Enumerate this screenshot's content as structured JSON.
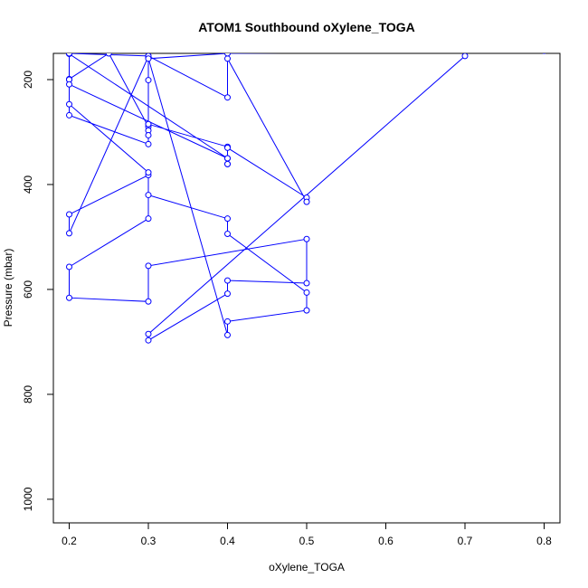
{
  "chart_data": {
    "type": "line",
    "title": "ATOM1 Southbound oXylene_TOGA",
    "xlabel": "oXylene_TOGA",
    "ylabel": "Pressure (mbar)",
    "xlim": [
      0.18,
      0.82
    ],
    "ylim": [
      1045,
      150
    ],
    "y_reversed": true,
    "grid": false,
    "legend": "none",
    "x_ticks": [
      0.2,
      0.3,
      0.4,
      0.5,
      0.6,
      0.7,
      0.8
    ],
    "x_tick_labels": [
      "0.2",
      "0.3",
      "0.4",
      "0.5",
      "0.6",
      "0.7",
      "0.8"
    ],
    "y_ticks": [
      200,
      400,
      600,
      800,
      1000
    ],
    "y_tick_labels": [
      "200",
      "400",
      "600",
      "800",
      "1000"
    ],
    "series_color": "#0000ff",
    "series": [
      {
        "x": [
          0.7,
          0.3,
          0.3,
          0.4,
          0.4,
          0.5,
          0.5,
          0.3,
          0.3,
          0.2,
          0.2,
          0.3,
          0.3,
          0.2,
          0.2,
          0.3,
          0.3,
          0.4,
          0.4,
          0.5,
          0.5,
          0.4,
          0.4,
          0.3,
          0.3,
          0.2,
          0.2,
          0.25,
          0.3,
          0.3,
          0.3,
          0.3,
          0.3,
          0.2,
          0.2,
          0.2,
          0.4,
          0.4,
          0.4,
          0.3,
          0.3,
          0.3,
          0.2,
          0.2,
          0.2,
          0.4,
          0.4,
          0.4,
          0.5,
          0.5,
          0.4,
          0.4,
          0.3,
          0.3,
          0.4,
          0.8
        ],
        "y": [
          155,
          685,
          697,
          608,
          583,
          588,
          504,
          555,
          623,
          616,
          557,
          465,
          382,
          457,
          493,
          156,
          159,
          687,
          661,
          640,
          606,
          494,
          465,
          420,
          377,
          247,
          199,
          150,
          290,
          297,
          306,
          285,
          323,
          268,
          200,
          151,
          350,
          361,
          328,
          285,
          201,
          155,
          150,
          200,
          209,
          350,
          361,
          330,
          425,
          433,
          160,
          234,
          155,
          160,
          150,
          145
        ]
      }
    ]
  }
}
